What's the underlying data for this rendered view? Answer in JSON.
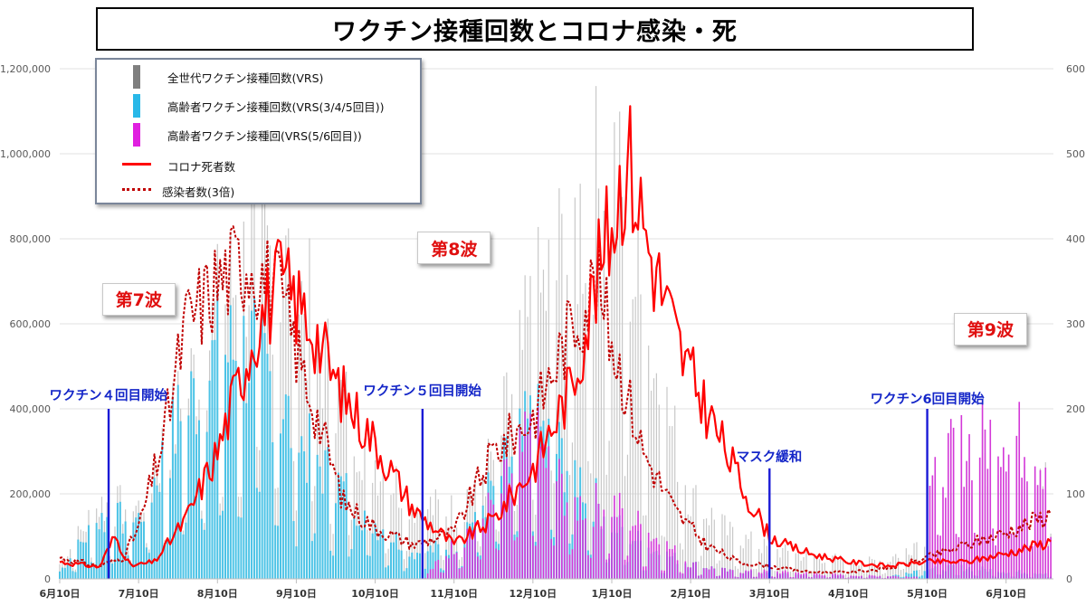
{
  "chart_data": {
    "type": "bar",
    "title": "ワクチン接種回数とコロナ感染・死",
    "x_ticks": [
      "6月10日",
      "7月10日",
      "8月10日",
      "9月10日",
      "10月10日",
      "11月10日",
      "12月10日",
      "1月10日",
      "2月10日",
      "3月10日",
      "4月10日",
      "5月10日",
      "6月10日"
    ],
    "y_left": {
      "ticks": [
        "0",
        "200,000",
        "400,000",
        "600,000",
        "800,000",
        "1,000,000",
        "1,200,000"
      ],
      "ylim": [
        0,
        1200000
      ]
    },
    "y_right": {
      "ticks": [
        "0",
        "100",
        "200",
        "300",
        "400",
        "500",
        "600"
      ],
      "ylim": [
        0,
        600
      ]
    },
    "legend_placement": "top-left",
    "legend": [
      {
        "name": "全世代ワクチン接種回数(VRS)",
        "color": "#7f7f7f"
      },
      {
        "name": "高齢者ワクチン接種回数(VRS(3/4/5回目))",
        "color": "#29b8e8"
      },
      {
        "name": "高齢者ワクチン接種回(VRS(5/6回目))",
        "color": "#e020e0"
      },
      {
        "name": "コロナ死者数",
        "color": "#ff0000"
      },
      {
        "name": "感染者数(3倍)",
        "color": "#c00000"
      }
    ],
    "series": [
      {
        "name": "全世代ワクチン接種回数(VRS)",
        "axis": "left",
        "type": "bar",
        "points": [
          [
            0.0,
            40000
          ],
          [
            0.5,
            200000
          ],
          [
            1.0,
            190000
          ],
          [
            1.5,
            450000
          ],
          [
            2.0,
            700000
          ],
          [
            2.5,
            900000
          ],
          [
            3.0,
            800000
          ],
          [
            3.5,
            500000
          ],
          [
            4.0,
            320000
          ],
          [
            4.5,
            200000
          ],
          [
            5.0,
            180000
          ],
          [
            5.5,
            320000
          ],
          [
            6.0,
            700000
          ],
          [
            6.5,
            920000
          ],
          [
            7.0,
            1100000
          ],
          [
            7.5,
            600000
          ],
          [
            8.0,
            220000
          ],
          [
            8.5,
            120000
          ],
          [
            9.0,
            80000
          ],
          [
            9.5,
            60000
          ],
          [
            10.0,
            50000
          ],
          [
            10.5,
            50000
          ],
          [
            11.0,
            120000
          ],
          [
            11.5,
            300000
          ],
          [
            12.0,
            340000
          ],
          [
            12.6,
            330000
          ]
        ]
      },
      {
        "name": "高齢者ワクチン接種回数(VRS(3/4/5回目))",
        "axis": "left",
        "type": "bar",
        "points": [
          [
            0.0,
            20000
          ],
          [
            0.5,
            160000
          ],
          [
            1.0,
            160000
          ],
          [
            1.5,
            420000
          ],
          [
            2.0,
            600000
          ],
          [
            2.5,
            620000
          ],
          [
            3.0,
            380000
          ],
          [
            3.5,
            260000
          ],
          [
            4.0,
            150000
          ],
          [
            4.5,
            70000
          ],
          [
            5.0,
            90000
          ],
          [
            5.5,
            250000
          ],
          [
            6.0,
            420000
          ],
          [
            6.5,
            300000
          ],
          [
            7.0,
            150000
          ],
          [
            7.5,
            80000
          ],
          [
            8.0,
            40000
          ],
          [
            8.5,
            20000
          ],
          [
            9.0,
            15000
          ],
          [
            9.5,
            10000
          ],
          [
            10.0,
            8000
          ],
          [
            10.5,
            6000
          ],
          [
            11.0,
            30000
          ],
          [
            11.5,
            30000
          ],
          [
            12.0,
            20000
          ],
          [
            12.6,
            15000
          ]
        ]
      },
      {
        "name": "高齢者ワクチン接種回(VRS(5/6回目))",
        "axis": "left",
        "type": "bar",
        "points": [
          [
            4.6,
            0
          ],
          [
            5.0,
            90000
          ],
          [
            5.5,
            200000
          ],
          [
            6.0,
            380000
          ],
          [
            6.5,
            200000
          ],
          [
            7.0,
            200000
          ],
          [
            7.5,
            120000
          ],
          [
            8.0,
            40000
          ],
          [
            8.5,
            20000
          ],
          [
            9.0,
            20000
          ],
          [
            9.5,
            15000
          ],
          [
            10.0,
            10000
          ],
          [
            10.5,
            8000
          ],
          [
            10.9,
            6000
          ],
          [
            11.0,
            280000
          ],
          [
            11.5,
            360000
          ],
          [
            12.0,
            400000
          ],
          [
            12.6,
            300000
          ]
        ]
      },
      {
        "name": "コロナ死者数",
        "axis": "right",
        "type": "line",
        "points": [
          [
            0.0,
            20
          ],
          [
            0.5,
            14
          ],
          [
            0.7,
            50
          ],
          [
            0.9,
            15
          ],
          [
            1.2,
            20
          ],
          [
            1.6,
            70
          ],
          [
            2.0,
            150
          ],
          [
            2.5,
            300
          ],
          [
            2.8,
            350
          ],
          [
            3.2,
            300
          ],
          [
            3.5,
            230
          ],
          [
            4.0,
            160
          ],
          [
            4.5,
            80
          ],
          [
            5.0,
            40
          ],
          [
            5.5,
            70
          ],
          [
            6.0,
            130
          ],
          [
            6.5,
            230
          ],
          [
            6.8,
            350
          ],
          [
            7.0,
            420
          ],
          [
            7.2,
            500
          ],
          [
            7.5,
            380
          ],
          [
            7.9,
            260
          ],
          [
            8.3,
            180
          ],
          [
            8.7,
            100
          ],
          [
            9.0,
            50
          ],
          [
            9.2,
            40
          ],
          [
            9.5,
            30
          ],
          [
            10.0,
            20
          ],
          [
            10.5,
            15
          ],
          [
            11.0,
            20
          ],
          [
            11.5,
            20
          ],
          [
            12.0,
            30
          ],
          [
            12.6,
            45
          ]
        ]
      },
      {
        "name": "感染者数(3倍)",
        "axis": "right",
        "type": "line",
        "points": [
          [
            0.0,
            25
          ],
          [
            0.5,
            15
          ],
          [
            0.8,
            25
          ],
          [
            1.0,
            60
          ],
          [
            1.3,
            160
          ],
          [
            1.6,
            300
          ],
          [
            2.0,
            350
          ],
          [
            2.4,
            380
          ],
          [
            2.8,
            330
          ],
          [
            3.2,
            210
          ],
          [
            3.6,
            90
          ],
          [
            4.0,
            60
          ],
          [
            4.5,
            40
          ],
          [
            5.0,
            55
          ],
          [
            5.5,
            150
          ],
          [
            6.0,
            190
          ],
          [
            6.5,
            300
          ],
          [
            6.8,
            350
          ],
          [
            7.1,
            250
          ],
          [
            7.4,
            150
          ],
          [
            7.8,
            80
          ],
          [
            8.2,
            40
          ],
          [
            8.6,
            20
          ],
          [
            9.0,
            15
          ],
          [
            9.5,
            8
          ],
          [
            10.0,
            8
          ],
          [
            10.5,
            12
          ],
          [
            11.0,
            25
          ],
          [
            11.5,
            40
          ],
          [
            12.0,
            55
          ],
          [
            12.6,
            78
          ]
        ]
      }
    ]
  },
  "annotations": {
    "waves": [
      {
        "text": "第7波",
        "x": 1.0,
        "y": 660000
      },
      {
        "text": "第8波",
        "x": 5.0,
        "y": 780000
      },
      {
        "text": "第9波",
        "x": 11.8,
        "y": 590000
      }
    ],
    "events": [
      {
        "text": "ワクチン４回目開始",
        "x": 0.62,
        "line_top": 400000,
        "label_y": 435000
      },
      {
        "text": "ワクチン５回目開始",
        "x": 4.6,
        "line_top": 400000,
        "label_y": 445000
      },
      {
        "text": "マスク緩和",
        "x": 9.0,
        "line_top": 260000,
        "label_y": 290000
      },
      {
        "text": "ワクチン6回目開始",
        "x": 11.0,
        "line_top": 400000,
        "label_y": 425000
      }
    ]
  }
}
